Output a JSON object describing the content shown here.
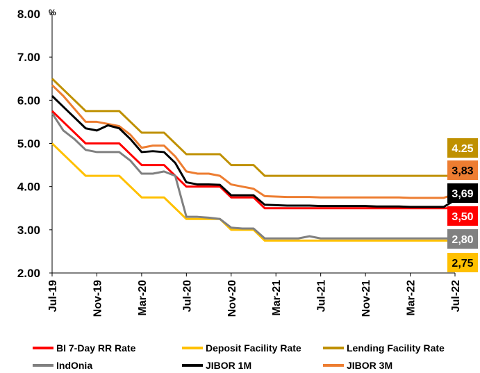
{
  "chart_data": {
    "type": "line",
    "y_unit": "%",
    "categories": [
      "Jul-19",
      null,
      null,
      null,
      "Nov-19",
      null,
      null,
      null,
      "Mar-20",
      null,
      null,
      null,
      "Jul-20",
      null,
      null,
      null,
      "Nov-20",
      null,
      null,
      null,
      "Mar-21",
      null,
      null,
      null,
      "Jul-21",
      null,
      null,
      null,
      "Nov-21",
      null,
      null,
      null,
      "Mar-22",
      null,
      null,
      null,
      "Jul-22"
    ],
    "ylim": [
      2,
      8
    ],
    "yticks": [
      {
        "value": 2,
        "label": "2.00"
      },
      {
        "value": 3,
        "label": "3.00"
      },
      {
        "value": 4,
        "label": "4.00"
      },
      {
        "value": 5,
        "label": "5.00"
      },
      {
        "value": 6,
        "label": "6.00"
      },
      {
        "value": 7,
        "label": "7.00"
      },
      {
        "value": 8,
        "label": "8.00"
      }
    ],
    "grid": false,
    "legend": "bottom",
    "series": [
      {
        "name": "BI 7-Day RR Rate",
        "color": "#ff0000",
        "values": [
          5.75,
          5.5,
          5.25,
          5,
          5,
          5,
          5,
          4.75,
          4.5,
          4.5,
          4.5,
          4.25,
          4,
          4,
          4,
          4,
          3.75,
          3.75,
          3.75,
          3.5,
          3.5,
          3.5,
          3.5,
          3.5,
          3.5,
          3.5,
          3.5,
          3.5,
          3.5,
          3.5,
          3.5,
          3.5,
          3.5,
          3.5,
          3.5,
          3.5,
          3.5
        ],
        "end_label": "3,50"
      },
      {
        "name": "Deposit Facility Rate",
        "color": "#ffc000",
        "values": [
          5,
          4.75,
          4.5,
          4.25,
          4.25,
          4.25,
          4.25,
          4,
          3.75,
          3.75,
          3.75,
          3.5,
          3.25,
          3.25,
          3.25,
          3.25,
          3,
          3,
          3,
          2.75,
          2.75,
          2.75,
          2.75,
          2.75,
          2.75,
          2.75,
          2.75,
          2.75,
          2.75,
          2.75,
          2.75,
          2.75,
          2.75,
          2.75,
          2.75,
          2.75,
          2.75
        ],
        "end_label": "2,75"
      },
      {
        "name": "Lending Facility Rate",
        "color": "#bf9000",
        "values": [
          6.5,
          6.25,
          6,
          5.75,
          5.75,
          5.75,
          5.75,
          5.5,
          5.25,
          5.25,
          5.25,
          5,
          4.75,
          4.75,
          4.75,
          4.75,
          4.5,
          4.5,
          4.5,
          4.25,
          4.25,
          4.25,
          4.25,
          4.25,
          4.25,
          4.25,
          4.25,
          4.25,
          4.25,
          4.25,
          4.25,
          4.25,
          4.25,
          4.25,
          4.25,
          4.25,
          4.25
        ],
        "end_label": "4.25"
      },
      {
        "name": "IndOnia",
        "color": "#808080",
        "values": [
          5.7,
          5.3,
          5.1,
          4.85,
          4.8,
          4.8,
          4.8,
          4.6,
          4.3,
          4.3,
          4.35,
          4.25,
          3.3,
          3.3,
          3.28,
          3.25,
          3.05,
          3.03,
          3.03,
          2.8,
          2.8,
          2.8,
          2.8,
          2.85,
          2.8,
          2.8,
          2.8,
          2.8,
          2.8,
          2.8,
          2.8,
          2.8,
          2.8,
          2.8,
          2.8,
          2.8,
          2.8
        ],
        "end_label": "2,80"
      },
      {
        "name": "JIBOR 1M",
        "color": "#000000",
        "values": [
          6.1,
          5.85,
          5.6,
          5.35,
          5.3,
          5.42,
          5.35,
          5.1,
          4.8,
          4.82,
          4.8,
          4.55,
          4.1,
          4.05,
          4.05,
          4.04,
          3.8,
          3.8,
          3.8,
          3.58,
          3.57,
          3.56,
          3.56,
          3.56,
          3.55,
          3.55,
          3.55,
          3.55,
          3.55,
          3.54,
          3.54,
          3.54,
          3.53,
          3.53,
          3.53,
          3.53,
          3.69
        ],
        "end_label": "3,69"
      },
      {
        "name": "JIBOR 3M",
        "color": "#ed7d31",
        "values": [
          6.35,
          6.1,
          5.8,
          5.5,
          5.5,
          5.45,
          5.4,
          5.2,
          4.9,
          4.95,
          4.95,
          4.7,
          4.35,
          4.3,
          4.3,
          4.25,
          4.05,
          4,
          3.95,
          3.78,
          3.77,
          3.76,
          3.76,
          3.76,
          3.75,
          3.75,
          3.75,
          3.75,
          3.75,
          3.75,
          3.75,
          3.75,
          3.74,
          3.74,
          3.74,
          3.74,
          3.83
        ],
        "end_label": "3,83"
      }
    ]
  }
}
